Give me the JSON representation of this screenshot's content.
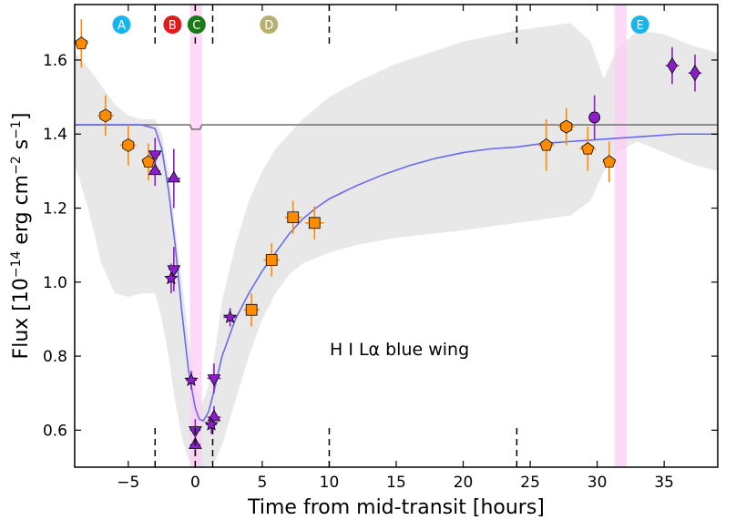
{
  "chart_data": {
    "type": "scatter",
    "xlabel": "Time from mid-transit [hours]",
    "ylabel_parts": [
      "Flux [10",
      "−14",
      " erg cm",
      "−2",
      " s",
      "−1",
      "]"
    ],
    "annotation": "H I Lα blue wing",
    "xlim": [
      -9,
      39
    ],
    "ylim": [
      0.5,
      1.75
    ],
    "xticks": [
      -5,
      0,
      5,
      10,
      15,
      20,
      25,
      30,
      35
    ],
    "xtick_labels": [
      "−5",
      "0",
      "5",
      "10",
      "15",
      "20",
      "25",
      "30",
      "35"
    ],
    "yticks": [
      0.6,
      0.8,
      1.0,
      1.2,
      1.4,
      1.6
    ],
    "ytick_labels": [
      "0.6",
      "0.8",
      "1.0",
      "1.2",
      "1.4",
      "1.6"
    ],
    "phases": [
      {
        "label": "A",
        "x": -5.5,
        "color": "#1ab5ea"
      },
      {
        "label": "B",
        "x": -1.7,
        "color": "#e31a1c"
      },
      {
        "label": "C",
        "x": 0.1,
        "color": "#1a7a1a"
      },
      {
        "label": "D",
        "x": 5.5,
        "color": "#b8b070"
      },
      {
        "label": "E",
        "x": 33.2,
        "color": "#1ab5ea"
      }
    ],
    "dashed_lines_x": [
      -3,
      0,
      1.3,
      10,
      24
    ],
    "shaded_bands": [
      [
        -0.4,
        0.5
      ],
      [
        31.3,
        32.2
      ]
    ],
    "out_of_transit_level": 1.425,
    "series": [
      {
        "name": "pentagon",
        "marker": "pentagon",
        "color": "#ff8c00",
        "errcolor": "#ff8c00",
        "points": [
          {
            "x": -8.5,
            "y": 1.645,
            "xerr": 0.5,
            "yerr": 0.065
          },
          {
            "x": -3.5,
            "y": 1.325,
            "xerr": 0.5,
            "yerr": 0.05
          },
          {
            "x": 26.2,
            "y": 1.37,
            "xerr": 0.6,
            "yerr": 0.07
          },
          {
            "x": 29.3,
            "y": 1.36,
            "xerr": 0.6,
            "yerr": 0.06
          },
          {
            "x": 30.9,
            "y": 1.325,
            "xerr": 0.5,
            "yerr": 0.055
          }
        ]
      },
      {
        "name": "hexagon",
        "marker": "hexagon",
        "color": "#ff8c00",
        "errcolor": "#ff8c00",
        "points": [
          {
            "x": -6.7,
            "y": 1.45,
            "xerr": 0.6,
            "yerr": 0.055
          },
          {
            "x": -5.0,
            "y": 1.37,
            "xerr": 0.6,
            "yerr": 0.055
          },
          {
            "x": 27.7,
            "y": 1.42,
            "xerr": 0.6,
            "yerr": 0.05
          }
        ]
      },
      {
        "name": "square",
        "marker": "square",
        "color": "#ff8c00",
        "errcolor": "#ff8c00",
        "points": [
          {
            "x": 4.2,
            "y": 0.925,
            "xerr": 0.6,
            "yerr": 0.045
          },
          {
            "x": 5.7,
            "y": 1.06,
            "xerr": 0.6,
            "yerr": 0.045
          },
          {
            "x": 7.3,
            "y": 1.175,
            "xerr": 0.6,
            "yerr": 0.045
          },
          {
            "x": 8.9,
            "y": 1.16,
            "xerr": 0.7,
            "yerr": 0.045
          }
        ]
      },
      {
        "name": "down-triangle",
        "marker": "triangle-down",
        "color": "#8a1ec8",
        "errcolor": "#8a1ec8",
        "points": [
          {
            "x": -3.0,
            "y": 1.345,
            "xerr": 0.4,
            "yerr": 0.045
          },
          {
            "x": -1.6,
            "y": 1.035,
            "xerr": 0.4,
            "yerr": 0.06
          },
          {
            "x": 0.0,
            "y": 0.6,
            "xerr": 0.4,
            "yerr": 0.03
          },
          {
            "x": 1.4,
            "y": 0.74,
            "xerr": 0.5,
            "yerr": 0.04
          }
        ]
      },
      {
        "name": "up-triangle",
        "marker": "triangle-up",
        "color": "#8a1ec8",
        "errcolor": "#8a1ec8",
        "points": [
          {
            "x": -3.0,
            "y": 1.3,
            "xerr": 0.4,
            "yerr": 0.04
          },
          {
            "x": -1.6,
            "y": 1.28,
            "xerr": 0.5,
            "yerr": 0.08
          },
          {
            "x": 0.0,
            "y": 0.56,
            "xerr": 0.4,
            "yerr": 0.03
          },
          {
            "x": 1.4,
            "y": 0.635,
            "xerr": 0.5,
            "yerr": 0.03
          }
        ]
      },
      {
        "name": "star",
        "marker": "star",
        "color": "#8a1ec8",
        "errcolor": "#8a1ec8",
        "points": [
          {
            "x": -1.8,
            "y": 1.01,
            "xerr": 0.3,
            "yerr": 0.04
          },
          {
            "x": -0.3,
            "y": 0.735,
            "xerr": 0.4,
            "yerr": 0.025
          },
          {
            "x": 1.2,
            "y": 0.615,
            "xerr": 0.4,
            "yerr": 0.025
          },
          {
            "x": 2.6,
            "y": 0.905,
            "xerr": 0.5,
            "yerr": 0.025
          }
        ]
      },
      {
        "name": "circle",
        "marker": "circle",
        "color": "#8a1ec8",
        "errcolor": "#8a1ec8",
        "points": [
          {
            "x": 29.8,
            "y": 1.445,
            "xerr": 0.3,
            "yerr": 0.06
          }
        ]
      },
      {
        "name": "diamond",
        "marker": "diamond",
        "color": "#8a1ec8",
        "errcolor": "#8a1ec8",
        "points": [
          {
            "x": 35.6,
            "y": 1.585,
            "xerr": 0.5,
            "yerr": 0.05
          },
          {
            "x": 37.3,
            "y": 1.565,
            "xerr": 0.5,
            "yerr": 0.05
          }
        ]
      }
    ],
    "model_curve": {
      "color": "#6a6af0",
      "x": [
        -9,
        -4,
        -3,
        -2.5,
        -2,
        -1.5,
        -1,
        -0.5,
        0,
        0.3,
        0.6,
        1,
        1.5,
        2,
        3,
        4,
        5,
        6,
        7,
        8,
        9,
        10,
        12,
        14,
        16,
        18,
        20,
        22,
        24,
        26,
        28,
        30,
        32,
        34,
        36,
        39
      ],
      "y": [
        1.425,
        1.425,
        1.415,
        1.36,
        1.25,
        1.1,
        0.92,
        0.76,
        0.66,
        0.63,
        0.625,
        0.65,
        0.72,
        0.8,
        0.9,
        0.97,
        1.03,
        1.08,
        1.13,
        1.17,
        1.2,
        1.225,
        1.26,
        1.29,
        1.315,
        1.335,
        1.35,
        1.36,
        1.365,
        1.375,
        1.38,
        1.385,
        1.39,
        1.395,
        1.4,
        1.4
      ]
    },
    "band": {
      "color": "#e8e8e8",
      "x": [
        -9,
        -8,
        -7,
        -6,
        -5,
        -4,
        -3,
        -2.5,
        -2,
        -1.5,
        -1,
        -0.5,
        0,
        0.5,
        1,
        1.5,
        2,
        3,
        4,
        5,
        6,
        7,
        8,
        10,
        12,
        15,
        20,
        24,
        26,
        28,
        29.5,
        30.5,
        31.5,
        33,
        35,
        37,
        39
      ],
      "upper": [
        1.62,
        1.58,
        1.53,
        1.48,
        1.45,
        1.44,
        1.44,
        1.4,
        1.3,
        1.15,
        1.0,
        0.85,
        0.72,
        0.67,
        0.72,
        0.82,
        0.95,
        1.1,
        1.22,
        1.3,
        1.36,
        1.4,
        1.44,
        1.5,
        1.54,
        1.59,
        1.65,
        1.68,
        1.69,
        1.7,
        1.65,
        1.55,
        1.63,
        1.68,
        1.67,
        1.64,
        1.62
      ],
      "lower": [
        1.32,
        1.2,
        1.05,
        0.97,
        0.96,
        0.97,
        0.97,
        0.9,
        0.8,
        0.68,
        0.58,
        0.52,
        0.5,
        0.5,
        0.5,
        0.52,
        0.56,
        0.68,
        0.8,
        0.9,
        0.97,
        1.02,
        1.05,
        1.08,
        1.1,
        1.12,
        1.14,
        1.16,
        1.17,
        1.18,
        1.22,
        1.3,
        1.35,
        1.38,
        1.35,
        1.32,
        1.3
      ]
    }
  }
}
